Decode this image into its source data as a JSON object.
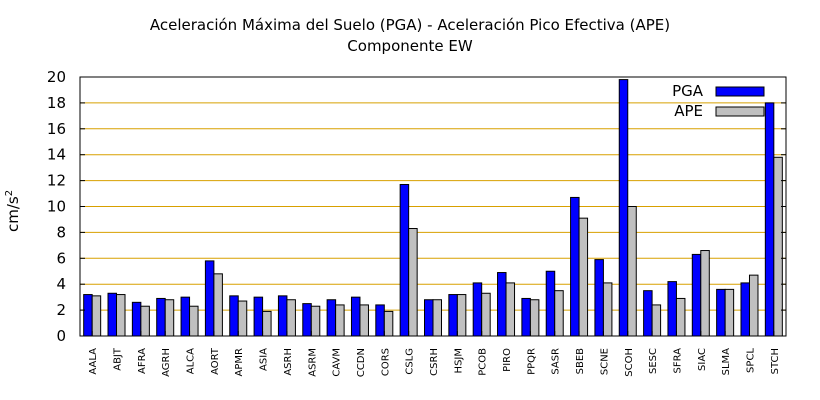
{
  "chart_data": {
    "type": "bar",
    "title": "Aceleración Máxima del Suelo (PGA) -  Aceleración Pico Efectiva (APE)",
    "subtitle": "Componente EW",
    "xlabel": "",
    "ylabel": "cm/s",
    "ylabel_superscript": "2",
    "ylim": [
      0,
      20
    ],
    "yticks": [
      "0",
      "2",
      "4",
      "6",
      "8",
      "10",
      "12",
      "14",
      "16",
      "18",
      "20"
    ],
    "grid": "horizontal",
    "legend_position": "top-right",
    "categories": [
      "AALA",
      "ABJT",
      "AFRA",
      "AGRH",
      "ALCA",
      "AORT",
      "APMR",
      "ASIA",
      "ASRH",
      "ASRM",
      "CAVM",
      "CCDN",
      "CORS",
      "CSLG",
      "CSRH",
      "HSJM",
      "PCOB",
      "PIRO",
      "PPQR",
      "SASR",
      "SBEB",
      "SCNE",
      "SCOH",
      "SESC",
      "SFRA",
      "SIAC",
      "SLMA",
      "SPCL",
      "STCH"
    ],
    "series": [
      {
        "name": "PGA",
        "color": "#0000ff",
        "values": [
          3.2,
          3.3,
          2.6,
          2.9,
          3.0,
          5.8,
          3.1,
          3.0,
          3.1,
          2.5,
          2.8,
          3.0,
          2.4,
          11.7,
          2.8,
          3.2,
          4.1,
          4.9,
          2.9,
          5.0,
          10.7,
          5.9,
          19.8,
          3.5,
          4.2,
          6.3,
          3.6,
          4.1,
          18.0
        ]
      },
      {
        "name": "APE",
        "color": "#c0c0c0",
        "values": [
          3.1,
          3.2,
          2.3,
          2.8,
          2.3,
          4.8,
          2.7,
          1.9,
          2.8,
          2.3,
          2.4,
          2.4,
          1.9,
          8.3,
          2.8,
          3.2,
          3.3,
          4.1,
          2.8,
          3.5,
          9.1,
          4.1,
          10.0,
          2.4,
          2.9,
          6.6,
          3.6,
          4.7,
          13.8
        ]
      }
    ]
  }
}
